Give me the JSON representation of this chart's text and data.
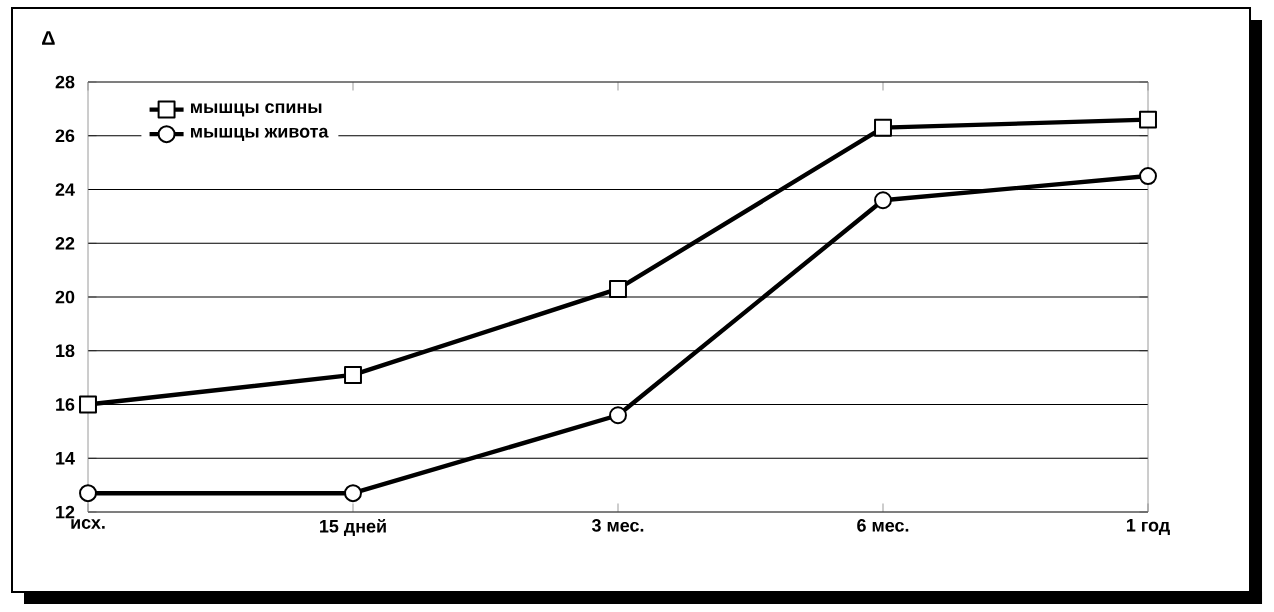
{
  "chart_data": {
    "type": "line",
    "ylabel": "Δ",
    "categories": [
      "исх.",
      "15 дней",
      "3 мес.",
      "6 мес.",
      "1 год"
    ],
    "series": [
      {
        "name": "мышцы спины",
        "color": "#000000",
        "marker": "square",
        "values": [
          16.0,
          17.1,
          20.3,
          26.3,
          26.6
        ]
      },
      {
        "name": "мышцы живота",
        "color": "#000000",
        "marker": "circle",
        "values": [
          12.7,
          12.7,
          15.6,
          23.6,
          24.5
        ]
      }
    ],
    "ylim": [
      12,
      28
    ],
    "yticks": [
      12,
      14,
      16,
      18,
      20,
      22,
      24,
      26,
      28
    ],
    "grid": "y",
    "legend": "top left",
    "line_style": "solid"
  }
}
